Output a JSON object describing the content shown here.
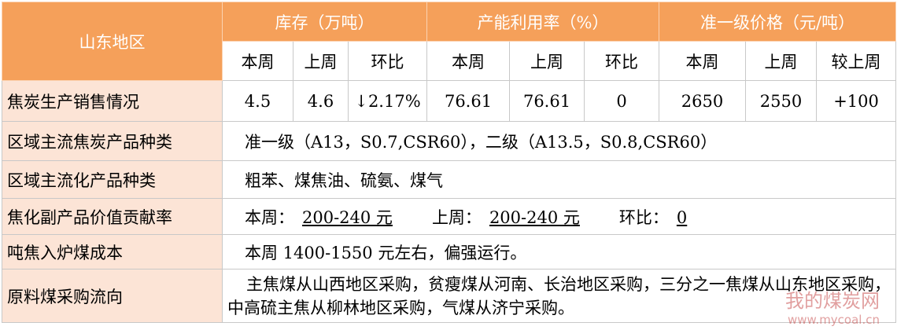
{
  "table": {
    "corner": "山东地区",
    "groups": [
      "库存（万吨）",
      "产能利用率（%）",
      "准一级价格（元/吨）"
    ],
    "subheaders": [
      "本周",
      "上周",
      "环比",
      "本周",
      "上周",
      "环比",
      "本周",
      "上周",
      "较上周"
    ],
    "rows": [
      {
        "label": "焦炭生产销售情况",
        "cells": [
          "4.5",
          "4.6",
          "↓2.17%",
          "76.61",
          "76.61",
          "0",
          "2650",
          "2550",
          "+100"
        ]
      },
      {
        "label": "区域主流焦炭产品种类",
        "text": "准一级（A13，S0.7,CSR60），二级（A13.5，S0.8,CSR60）"
      },
      {
        "label": "区域主流化产品种类",
        "text": "粗苯、煤焦油、硫氨、煤气"
      },
      {
        "label": "焦化副产品价值贡献率",
        "parts": [
          {
            "label": "本周：",
            "value": "200-240 元"
          },
          {
            "label": "上周：",
            "value": "200-240 元"
          },
          {
            "label": "环比：",
            "value": "0"
          }
        ]
      },
      {
        "label": "吨焦入炉煤成本",
        "text": "本周 1400-1550 元左右，偏强运行。"
      },
      {
        "label": "原料煤采购流向",
        "text": "主焦煤从山西地区采购，贫瘦煤从河南、长治地区采购，三分之一焦煤从山东地区采购，中高硫主焦从柳林地区采购，气煤从济宁采购。"
      }
    ]
  },
  "watermark": {
    "site": "我的煤炭网",
    "url": "www.mycoal.cn"
  }
}
